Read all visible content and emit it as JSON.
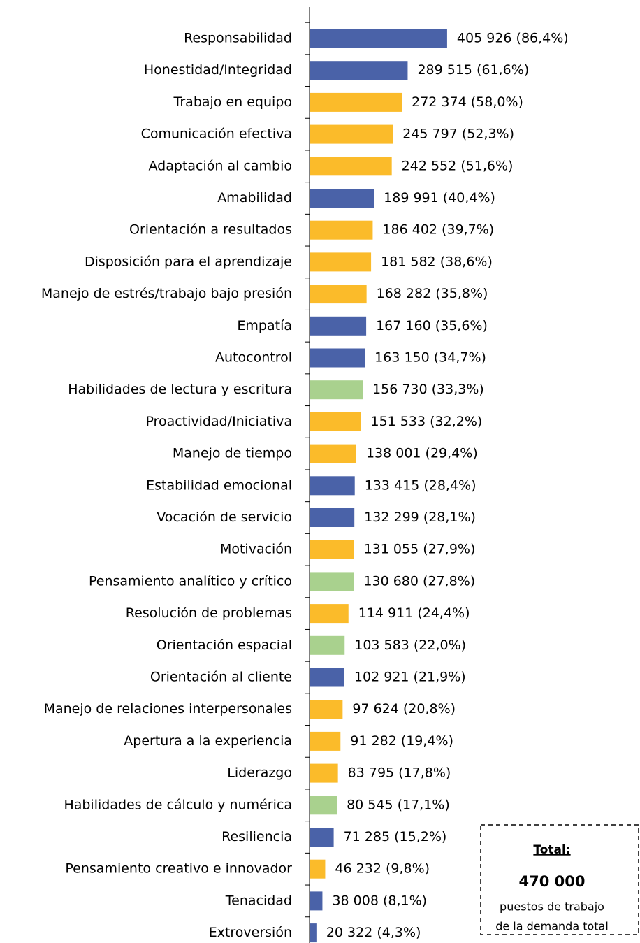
{
  "chart_data": {
    "type": "barh",
    "categories": [
      "Responsabilidad",
      "Honestidad/Integridad",
      "Trabajo en equipo",
      "Comunicación efectiva",
      "Adaptación al cambio",
      "Amabilidad",
      "Orientación a resultados",
      "Disposición para el aprendizaje",
      "Manejo de estrés/trabajo bajo presión",
      "Empatía",
      "Autocontrol",
      "Habilidades de lectura y escritura",
      "Proactividad/Iniciativa",
      "Manejo de tiempo",
      "Estabilidad emocional",
      "Vocación de servicio",
      "Motivación",
      "Pensamiento analítico y crítico",
      "Resolución de problemas",
      "Orientación espacial",
      "Orientación al cliente",
      "Manejo de relaciones interpersonales",
      "Apertura a la experiencia",
      "Liderazgo",
      "Habilidades de cálculo y numérica",
      "Resiliencia",
      "Pensamiento creativo e innovador",
      "Tenacidad",
      "Extroversión"
    ],
    "values": [
      405926,
      289515,
      272374,
      245797,
      242552,
      189991,
      186402,
      181582,
      168282,
      167160,
      163150,
      156730,
      151533,
      138001,
      133415,
      132299,
      131055,
      130680,
      114911,
      103583,
      102921,
      97624,
      91282,
      83795,
      80545,
      71285,
      46232,
      38008,
      20322
    ],
    "value_labels": [
      "405 926  (86,4%)",
      "289 515  (61,6%)",
      "272 374  (58,0%)",
      "245 797  (52,3%)",
      "242 552  (51,6%)",
      "189 991  (40,4%)",
      "186 402  (39,7%)",
      "181 582  (38,6%)",
      "168 282  (35,8%)",
      "167 160  (35,6%)",
      "163 150  (34,7%)",
      "156 730  (33,3%)",
      "151 533  (32,2%)",
      "138 001  (29,4%)",
      "133 415  (28,4%)",
      "132 299  (28,1%)",
      "131 055  (27,9%)",
      "130 680  (27,8%)",
      "114 911  (24,4%)",
      "103 583  (22,0%)",
      "102 921  (21,9%)",
      "97 624  (20,8%)",
      "91 282  (19,4%)",
      "83 795  (17,8%)",
      "80 545  (17,1%)",
      "71 285  (15,2%)",
      "46 232  (9,8%)",
      "38 008  (8,1%)",
      "20 322  (4,3%)"
    ],
    "colors": [
      "#4a62a8",
      "#4a62a8",
      "#fbbb2a",
      "#fbbb2a",
      "#fbbb2a",
      "#4a62a8",
      "#fbbb2a",
      "#fbbb2a",
      "#fbbb2a",
      "#4a62a8",
      "#4a62a8",
      "#a9d18e",
      "#fbbb2a",
      "#fbbb2a",
      "#4a62a8",
      "#4a62a8",
      "#fbbb2a",
      "#a9d18e",
      "#fbbb2a",
      "#a9d18e",
      "#4a62a8",
      "#fbbb2a",
      "#fbbb2a",
      "#fbbb2a",
      "#a9d18e",
      "#4a62a8",
      "#fbbb2a",
      "#4a62a8",
      "#4a62a8"
    ],
    "xlim": [
      0,
      975000
    ],
    "total_box": {
      "title": "Total:",
      "value": "470 000",
      "lines": [
        "puestos de trabajo",
        "de la demanda total"
      ]
    }
  }
}
